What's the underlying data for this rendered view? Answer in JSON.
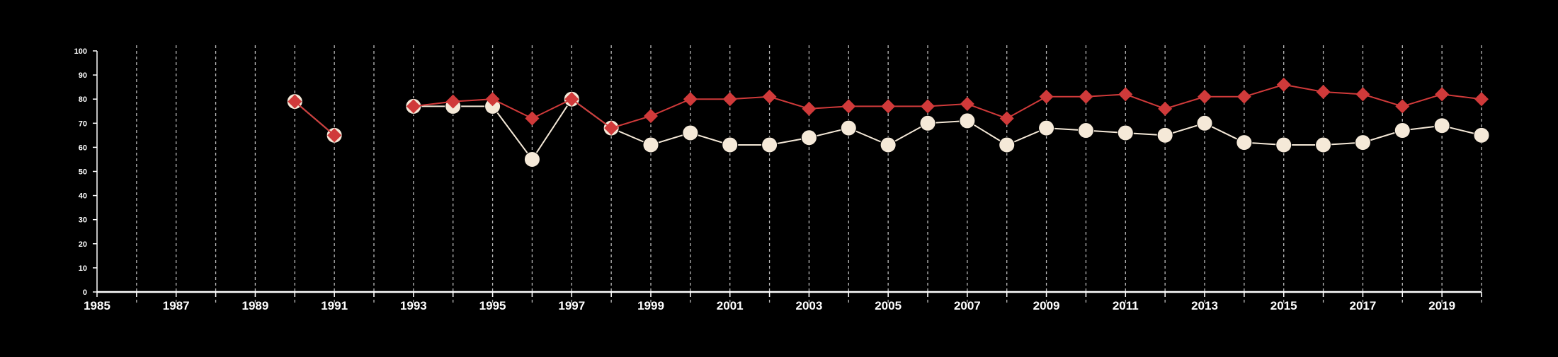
{
  "chart_data": {
    "type": "line",
    "title": "",
    "xlabel": "",
    "ylabel": "",
    "xlim": [
      1985,
      2020
    ],
    "ylim": [
      0,
      100
    ],
    "yticks": [
      0,
      10,
      20,
      30,
      40,
      50,
      60,
      70,
      80,
      90,
      100
    ],
    "xticks": [
      1985,
      1986,
      1987,
      1988,
      1989,
      1990,
      1991,
      1992,
      1993,
      1994,
      1995,
      1996,
      1997,
      1998,
      1999,
      2000,
      2001,
      2002,
      2003,
      2004,
      2005,
      2006,
      2007,
      2008,
      2009,
      2010,
      2011,
      2012,
      2013,
      2014,
      2015,
      2016,
      2017,
      2018,
      2019,
      2020
    ],
    "xtick_labels": [
      "1985",
      "1987",
      "1989",
      "1991",
      "1993",
      "1995",
      "1997",
      "1999",
      "2001",
      "2003",
      "2005",
      "2007",
      "2009",
      "2011",
      "2013",
      "2015",
      "2017",
      "2019"
    ],
    "grid": "vertical dashed at each year",
    "legend": "none",
    "colors": {
      "background": "#000000",
      "axis": "#ffffff",
      "grid": "#bbbbbb",
      "series_cream": "#f5e9d8",
      "series_red": "#d03a3a"
    },
    "series": [
      {
        "marker": "circle",
        "color": "#f5e9d8",
        "points": [
          [
            1990,
            79
          ],
          [
            1991,
            65
          ],
          [
            1993,
            77
          ],
          [
            1994,
            77
          ],
          [
            1995,
            77
          ],
          [
            1996,
            55
          ],
          [
            1997,
            80
          ],
          [
            1998,
            68
          ],
          [
            1999,
            61
          ],
          [
            2000,
            66
          ],
          [
            2001,
            61
          ],
          [
            2002,
            61
          ],
          [
            2003,
            64
          ],
          [
            2004,
            68
          ],
          [
            2005,
            61
          ],
          [
            2006,
            70
          ],
          [
            2007,
            71
          ],
          [
            2008,
            61
          ],
          [
            2009,
            68
          ],
          [
            2010,
            67
          ],
          [
            2011,
            66
          ],
          [
            2012,
            65
          ],
          [
            2013,
            70
          ],
          [
            2014,
            62
          ],
          [
            2015,
            61
          ],
          [
            2016,
            61
          ],
          [
            2017,
            62
          ],
          [
            2018,
            67
          ],
          [
            2019,
            69
          ],
          [
            2020,
            65
          ]
        ]
      },
      {
        "marker": "diamond",
        "color": "#d03a3a",
        "points": [
          [
            1990,
            79
          ],
          [
            1991,
            65
          ],
          [
            1993,
            77
          ],
          [
            1994,
            79
          ],
          [
            1995,
            80
          ],
          [
            1996,
            72
          ],
          [
            1997,
            80
          ],
          [
            1998,
            68
          ],
          [
            1999,
            73
          ],
          [
            2000,
            80
          ],
          [
            2001,
            80
          ],
          [
            2002,
            81
          ],
          [
            2003,
            76
          ],
          [
            2004,
            77
          ],
          [
            2005,
            77
          ],
          [
            2006,
            77
          ],
          [
            2007,
            78
          ],
          [
            2008,
            72
          ],
          [
            2009,
            81
          ],
          [
            2010,
            81
          ],
          [
            2011,
            82
          ],
          [
            2012,
            76
          ],
          [
            2013,
            81
          ],
          [
            2014,
            81
          ],
          [
            2015,
            86
          ],
          [
            2016,
            83
          ],
          [
            2017,
            82
          ],
          [
            2018,
            77
          ],
          [
            2019,
            82
          ],
          [
            2020,
            80
          ]
        ]
      }
    ]
  }
}
